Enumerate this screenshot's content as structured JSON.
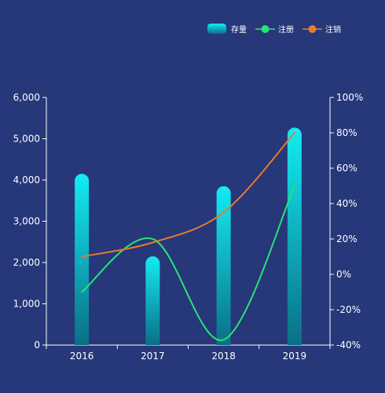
{
  "chart_data": {
    "type": "bar",
    "categories": [
      "2016",
      "2017",
      "2018",
      "2019"
    ],
    "series": [
      {
        "name": "存量",
        "type": "bar",
        "axis": "left",
        "values": [
          4150,
          2150,
          3850,
          5270
        ]
      },
      {
        "name": "注册",
        "type": "line",
        "axis": "right",
        "values": [
          -10,
          20,
          -37,
          50
        ]
      },
      {
        "name": "注销",
        "type": "line",
        "axis": "right",
        "values": [
          10,
          18,
          35,
          80
        ]
      }
    ],
    "y_left": {
      "min": 0,
      "max": 6000,
      "ticks": [
        0,
        1000,
        2000,
        3000,
        4000,
        5000,
        6000
      ],
      "tick_labels": [
        "0",
        "1,000",
        "2,000",
        "3,000",
        "4,000",
        "5,000",
        "6,000"
      ]
    },
    "y_right": {
      "min": -40,
      "max": 100,
      "ticks": [
        -40,
        -20,
        0,
        20,
        40,
        60,
        80,
        100
      ],
      "tick_labels": [
        "-40%",
        "-20%",
        "0%",
        "20%",
        "40%",
        "60%",
        "80%",
        "100%"
      ]
    },
    "legend_position": "top-right",
    "grid": false,
    "colors": {
      "background": "#26377a",
      "bar_top": "#13ecf3",
      "bar_bottom": "#0b6f86",
      "register_line": "#25e676",
      "cancel_line": "#e87b2c",
      "axis": "#ffffff"
    }
  }
}
